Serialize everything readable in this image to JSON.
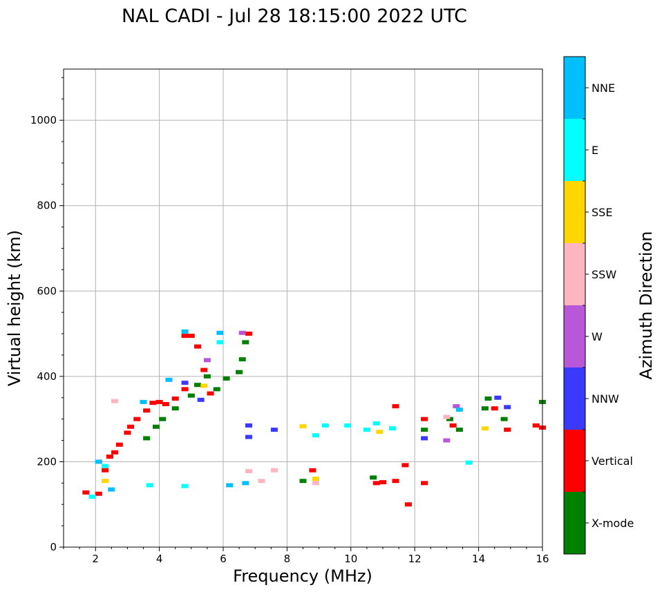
{
  "chart_data": {
    "type": "scatter",
    "title": "NAL CADI - Jul 28 18:15:00 2022 UTC",
    "xlabel": "Frequency (MHz)",
    "ylabel": "Virtual height (km)",
    "xlim": [
      1,
      16
    ],
    "ylim": [
      0,
      1120
    ],
    "xticks": [
      2,
      4,
      6,
      8,
      10,
      12,
      14,
      16
    ],
    "yticks": [
      0,
      200,
      400,
      600,
      800,
      1000
    ],
    "grid": true,
    "colorbar": {
      "label": "Azimuth Direction",
      "position": "right",
      "categories": [
        {
          "name": "X-mode",
          "color": "#008000"
        },
        {
          "name": "Vertical",
          "color": "#ff0000"
        },
        {
          "name": "NNW",
          "color": "#3a3aff"
        },
        {
          "name": "W",
          "color": "#b858d8"
        },
        {
          "name": "SSW",
          "color": "#ffb6c1"
        },
        {
          "name": "SSE",
          "color": "#ffd700"
        },
        {
          "name": "E",
          "color": "#00ffff"
        },
        {
          "name": "NNE",
          "color": "#00bfff"
        }
      ]
    },
    "series": [
      {
        "name": "Vertical",
        "points": [
          [
            1.7,
            128
          ],
          [
            2.1,
            125
          ],
          [
            2.3,
            180
          ],
          [
            2.45,
            212
          ],
          [
            2.6,
            222
          ],
          [
            2.75,
            240
          ],
          [
            3.0,
            268
          ],
          [
            3.1,
            282
          ],
          [
            3.3,
            300
          ],
          [
            3.6,
            320
          ],
          [
            3.8,
            338
          ],
          [
            4.0,
            340
          ],
          [
            4.2,
            335
          ],
          [
            4.5,
            348
          ],
          [
            4.8,
            370
          ],
          [
            4.8,
            495
          ],
          [
            5.0,
            495
          ],
          [
            5.2,
            470
          ],
          [
            5.4,
            415
          ],
          [
            5.6,
            360
          ],
          [
            6.8,
            500
          ],
          [
            8.8,
            180
          ],
          [
            10.8,
            150
          ],
          [
            11.0,
            152
          ],
          [
            11.4,
            155
          ],
          [
            11.4,
            330
          ],
          [
            11.8,
            100
          ],
          [
            11.7,
            192
          ],
          [
            12.3,
            300
          ],
          [
            12.3,
            150
          ],
          [
            13.2,
            285
          ],
          [
            14.5,
            325
          ],
          [
            14.9,
            275
          ],
          [
            15.8,
            285
          ],
          [
            16.0,
            280
          ]
        ]
      },
      {
        "name": "X-mode",
        "points": [
          [
            3.6,
            255
          ],
          [
            3.9,
            282
          ],
          [
            4.1,
            300
          ],
          [
            4.5,
            325
          ],
          [
            5.0,
            355
          ],
          [
            5.2,
            380
          ],
          [
            5.5,
            400
          ],
          [
            5.8,
            370
          ],
          [
            6.1,
            395
          ],
          [
            6.5,
            410
          ],
          [
            6.6,
            440
          ],
          [
            6.7,
            480
          ],
          [
            8.5,
            155
          ],
          [
            10.7,
            163
          ],
          [
            12.3,
            275
          ],
          [
            13.1,
            300
          ],
          [
            13.4,
            275
          ],
          [
            14.2,
            325
          ],
          [
            14.3,
            348
          ],
          [
            14.8,
            300
          ],
          [
            16.0,
            340
          ]
        ]
      },
      {
        "name": "NNW",
        "points": [
          [
            4.8,
            385
          ],
          [
            5.3,
            345
          ],
          [
            6.8,
            285
          ],
          [
            6.8,
            258
          ],
          [
            7.6,
            275
          ],
          [
            12.3,
            255
          ],
          [
            14.6,
            350
          ],
          [
            14.9,
            328
          ]
        ]
      },
      {
        "name": "W",
        "points": [
          [
            5.5,
            438
          ],
          [
            6.6,
            502
          ],
          [
            13.0,
            250
          ],
          [
            13.3,
            330
          ]
        ]
      },
      {
        "name": "SSW",
        "points": [
          [
            2.6,
            342
          ],
          [
            6.8,
            178
          ],
          [
            7.2,
            155
          ],
          [
            7.6,
            180
          ],
          [
            8.9,
            150
          ],
          [
            13.0,
            305
          ]
        ]
      },
      {
        "name": "SSE",
        "points": [
          [
            2.3,
            155
          ],
          [
            5.4,
            378
          ],
          [
            8.5,
            283
          ],
          [
            8.9,
            160
          ],
          [
            10.9,
            270
          ],
          [
            14.2,
            278
          ]
        ]
      },
      {
        "name": "E",
        "points": [
          [
            1.9,
            118
          ],
          [
            2.3,
            190
          ],
          [
            3.7,
            145
          ],
          [
            4.8,
            143
          ],
          [
            5.9,
            480
          ],
          [
            8.9,
            262
          ],
          [
            9.2,
            285
          ],
          [
            9.9,
            285
          ],
          [
            10.5,
            275
          ],
          [
            10.8,
            290
          ],
          [
            11.3,
            278
          ],
          [
            13.7,
            198
          ]
        ]
      },
      {
        "name": "NNE",
        "points": [
          [
            2.1,
            200
          ],
          [
            2.5,
            135
          ],
          [
            3.5,
            340
          ],
          [
            4.3,
            392
          ],
          [
            4.8,
            505
          ],
          [
            5.9,
            502
          ],
          [
            6.2,
            145
          ],
          [
            6.7,
            150
          ],
          [
            13.4,
            322
          ]
        ]
      }
    ]
  }
}
